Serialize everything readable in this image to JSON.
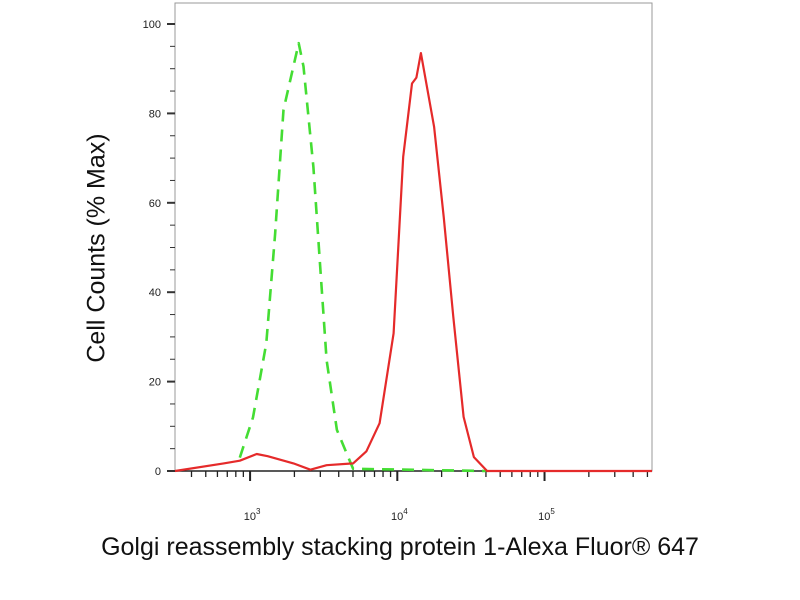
{
  "chart_data": {
    "type": "line",
    "xlabel": "Golgi reassembly stacking protein 1-Alexa Fluor® 647",
    "ylabel": "Cell Counts (% Max)",
    "x_scale": "log",
    "xlim": [
      309,
      537032
    ],
    "ylim": [
      0,
      100
    ],
    "x_ticks": [
      {
        "value": 1000,
        "base": "10",
        "exp": "3"
      },
      {
        "value": 10000,
        "base": "10",
        "exp": "4"
      },
      {
        "value": 100000,
        "base": "10",
        "exp": "5"
      }
    ],
    "y_ticks": [
      0,
      20,
      40,
      60,
      80,
      100
    ],
    "grid": false,
    "series": [
      {
        "color": "#44dd33",
        "style": "dashed",
        "x": [
          851,
          1047,
          1288,
          1479,
          1687,
          2138,
          2307,
          2692,
          2992,
          3311,
          3890,
          5012,
          40000
        ],
        "y": [
          3,
          12,
          28.6,
          53,
          80.8,
          95.7,
          90.5,
          68,
          45.7,
          24.8,
          9.2,
          0.5,
          0
        ]
      },
      {
        "color": "#e52a2a",
        "style": "solid",
        "x": [
          309,
          661,
          851,
          1109,
          1318,
          1972,
          2570,
          3311,
          5012,
          6166,
          7586,
          9441,
          10965,
          12589,
          13490,
          14454,
          17783,
          20654,
          23988,
          28184,
          33113,
          40738,
          537032
        ],
        "y": [
          0,
          1.7,
          2.3,
          3.8,
          3.3,
          1.7,
          0.3,
          1.3,
          1.7,
          4.4,
          10.7,
          30.8,
          70.3,
          86.7,
          88,
          93.5,
          77,
          56.9,
          34.5,
          12.1,
          3.1,
          0,
          0
        ]
      }
    ]
  }
}
